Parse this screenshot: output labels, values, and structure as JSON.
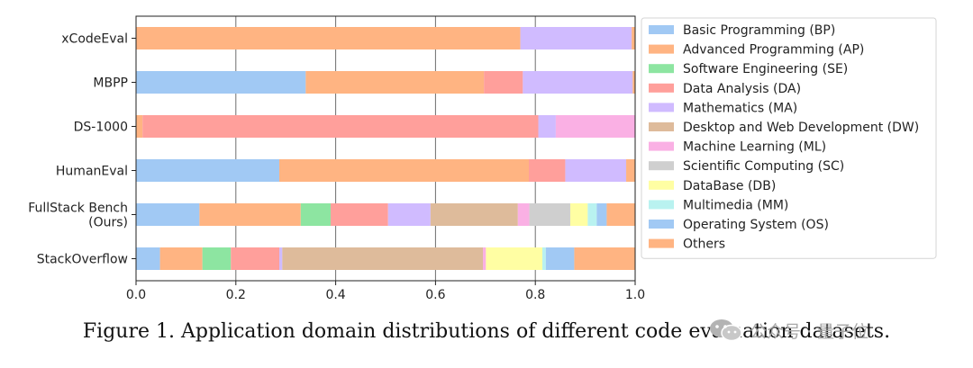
{
  "chart_data": {
    "type": "bar",
    "orientation": "horizontal",
    "stacked": true,
    "xlim": [
      0.0,
      1.0
    ],
    "xticks": [
      "0.0",
      "0.2",
      "0.4",
      "0.6",
      "0.8",
      "1.0"
    ],
    "grid": "vertical",
    "legend_position": "right",
    "categories": [
      [
        "xCodeEval"
      ],
      [
        "MBPP"
      ],
      [
        "DS-1000"
      ],
      [
        "HumanEval"
      ],
      [
        "FullStack Bench",
        "(Ours)"
      ],
      [
        "StackOverflow"
      ]
    ],
    "series": [
      {
        "name": "Basic Programming (BP)",
        "color": "#a1c9f4",
        "values": [
          0.0,
          0.34,
          0.0,
          0.287,
          0.127,
          0.048
        ]
      },
      {
        "name": "Advanced Programming (AP)",
        "color": "#ffb482",
        "values": [
          0.77,
          0.357,
          0.013,
          0.5,
          0.203,
          0.085
        ]
      },
      {
        "name": "Software Engineering (SE)",
        "color": "#8de5a1",
        "values": [
          0.0,
          0.0,
          0.0,
          0.0,
          0.06,
          0.057
        ]
      },
      {
        "name": "Data Analysis (DA)",
        "color": "#ff9f9b",
        "values": [
          0.0,
          0.078,
          0.793,
          0.073,
          0.115,
          0.097
        ]
      },
      {
        "name": "Mathematics (MA)",
        "color": "#d0bbff",
        "values": [
          0.223,
          0.22,
          0.035,
          0.122,
          0.085,
          0.006
        ]
      },
      {
        "name": "Desktop and Web Development (DW)",
        "color": "#debb9b",
        "values": [
          0.0,
          0.0,
          0.0,
          0.0,
          0.175,
          0.402
        ]
      },
      {
        "name": "Machine Learning (ML)",
        "color": "#fab0e4",
        "values": [
          0.0,
          0.0,
          0.159,
          0.0,
          0.023,
          0.006
        ]
      },
      {
        "name": "Scientific Computing (SC)",
        "color": "#cfcfcf",
        "values": [
          0.0,
          0.0,
          0.0,
          0.0,
          0.082,
          0.0
        ]
      },
      {
        "name": "DataBase (DB)",
        "color": "#fffea3",
        "values": [
          0.0,
          0.0,
          0.0,
          0.0,
          0.035,
          0.113
        ]
      },
      {
        "name": "Multimedia (MM)",
        "color": "#b9f2f0",
        "values": [
          0.0,
          0.0,
          0.0,
          0.0,
          0.018,
          0.007
        ]
      },
      {
        "name": "Operating System (OS)",
        "color": "#a1c9f4",
        "values": [
          0.0,
          0.0,
          0.0,
          0.0,
          0.02,
          0.057
        ]
      },
      {
        "name": "Others",
        "color": "#ffb482",
        "values": [
          0.007,
          0.005,
          0.0,
          0.018,
          0.057,
          0.122
        ]
      }
    ]
  },
  "caption": "Figure 1. Application domain distributions of different code evaluation datasets.",
  "watermark": {
    "text": "公众号 · 量子位"
  }
}
